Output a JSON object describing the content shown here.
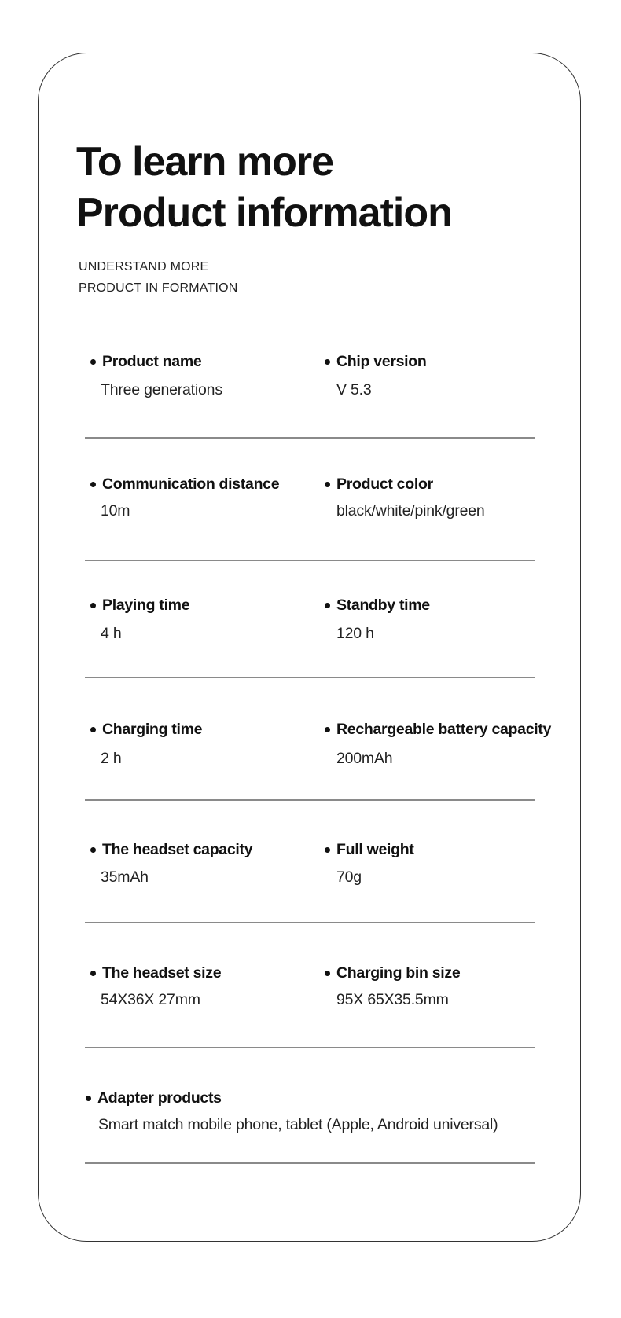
{
  "header": {
    "title_line1": "To learn more",
    "title_line2": "Product information",
    "subtitle_line1": "UNDERSTAND MORE",
    "subtitle_line2": "PRODUCT IN FORMATION"
  },
  "specs": [
    [
      {
        "label": "Product name",
        "value": "Three generations"
      },
      {
        "label": "Chip version",
        "value": "V 5.3"
      }
    ],
    [
      {
        "label": "Communication distance",
        "value": "10m"
      },
      {
        "label": "Product color",
        "value": "black/white/pink/green"
      }
    ],
    [
      {
        "label": "Playing time",
        "value": "4 h"
      },
      {
        "label": "Standby time",
        "value": "120 h"
      }
    ],
    [
      {
        "label": "Charging time",
        "value": "2 h"
      },
      {
        "label": "Rechargeable battery capacity",
        "value": "200mAh"
      }
    ],
    [
      {
        "label": "The headset capacity",
        "value": "35mAh"
      },
      {
        "label": "Full weight",
        "value": "70g"
      }
    ],
    [
      {
        "label": "The headset size",
        "value": "54X36X 27mm"
      },
      {
        "label": "Charging bin size",
        "value": "95X 65X35.5mm"
      }
    ],
    [
      {
        "label": "Adapter products",
        "value": "Smart match mobile phone, tablet (Apple, Android universal)"
      }
    ]
  ]
}
